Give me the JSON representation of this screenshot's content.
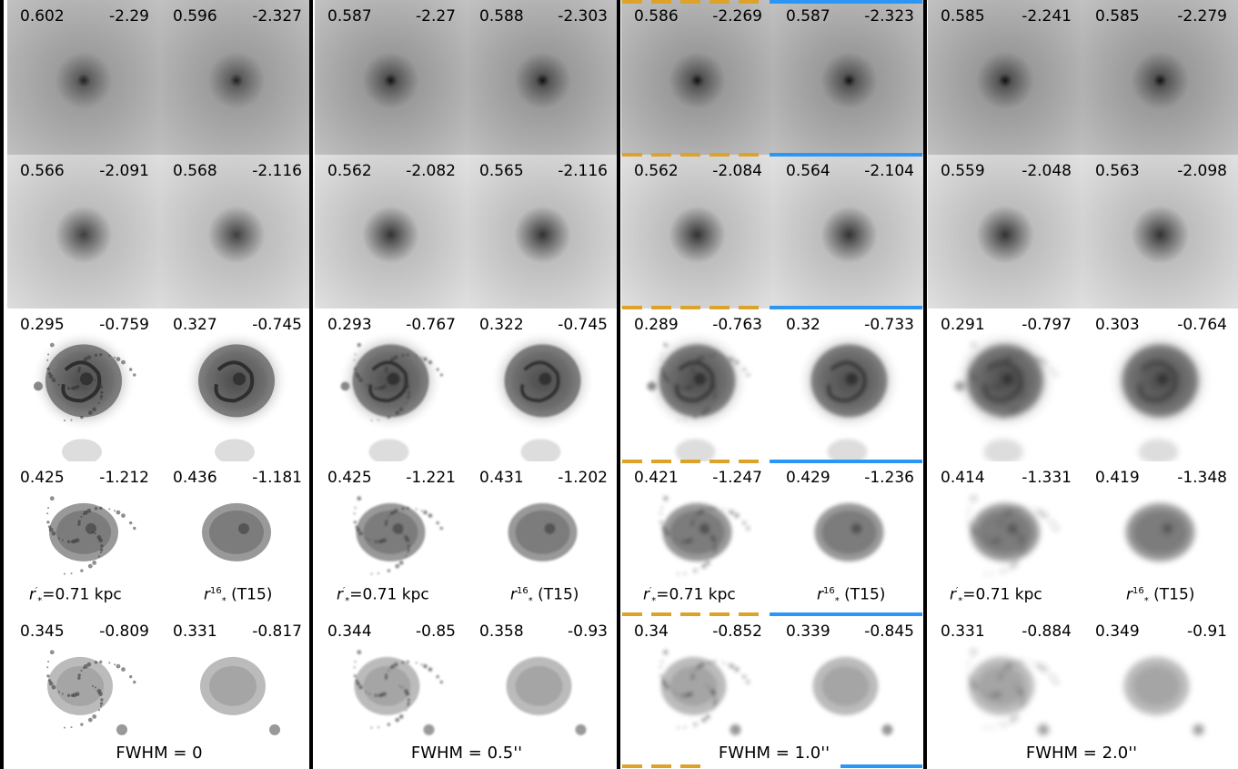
{
  "columns": [
    {
      "fwhm_label": "FWHM = 0"
    },
    {
      "fwhm_label": "FWHM = 0.5''"
    },
    {
      "fwhm_label": "FWHM = 1.0''"
    },
    {
      "fwhm_label": "FWHM = 2.0''"
    }
  ],
  "row_labels": {
    "left": {
      "base": "r",
      "prime": "′",
      "sub": "*",
      "rest": "=0.71 kpc"
    },
    "right": {
      "base": "r",
      "sup": "16",
      "sub": "*",
      "rest": "(T15)"
    }
  },
  "highlight_colors": {
    "dashed": "#dda22a",
    "solid": "#2b96f4"
  },
  "rows": [
    {
      "type": "diffuse",
      "panels": [
        [
          "0.602",
          "-2.29"
        ],
        [
          "0.596",
          "-2.327"
        ],
        [
          "0.587",
          "-2.27"
        ],
        [
          "0.588",
          "-2.303"
        ],
        [
          "0.586",
          "-2.269"
        ],
        [
          "0.587",
          "-2.323"
        ],
        [
          "0.585",
          "-2.241"
        ],
        [
          "0.585",
          "-2.279"
        ]
      ]
    },
    {
      "type": "faint",
      "panels": [
        [
          "0.566",
          "-2.091"
        ],
        [
          "0.568",
          "-2.116"
        ],
        [
          "0.562",
          "-2.082"
        ],
        [
          "0.565",
          "-2.116"
        ],
        [
          "0.562",
          "-2.084"
        ],
        [
          "0.564",
          "-2.104"
        ],
        [
          "0.559",
          "-2.048"
        ],
        [
          "0.563",
          "-2.098"
        ]
      ]
    },
    {
      "type": "spiral",
      "panels": [
        [
          "0.295",
          "-0.759"
        ],
        [
          "0.327",
          "-0.745"
        ],
        [
          "0.293",
          "-0.767"
        ],
        [
          "0.322",
          "-0.745"
        ],
        [
          "0.289",
          "-0.763"
        ],
        [
          "0.32",
          "-0.733"
        ],
        [
          "0.291",
          "-0.797"
        ],
        [
          "0.303",
          "-0.764"
        ]
      ]
    },
    {
      "type": "clumpy",
      "panels": [
        [
          "0.425",
          "-1.212"
        ],
        [
          "0.436",
          "-1.181"
        ],
        [
          "0.425",
          "-1.221"
        ],
        [
          "0.431",
          "-1.202"
        ],
        [
          "0.421",
          "-1.247"
        ],
        [
          "0.429",
          "-1.236"
        ],
        [
          "0.414",
          "-1.331"
        ],
        [
          "0.419",
          "-1.348"
        ]
      ]
    },
    {
      "type": "diffuse-clump",
      "panels": [
        [
          "0.345",
          "-0.809"
        ],
        [
          "0.331",
          "-0.817"
        ],
        [
          "0.344",
          "-0.85"
        ],
        [
          "0.358",
          "-0.93"
        ],
        [
          "0.34",
          "-0.852"
        ],
        [
          "0.339",
          "-0.845"
        ],
        [
          "0.331",
          "-0.884"
        ],
        [
          "0.349",
          "-0.91"
        ]
      ]
    }
  ]
}
